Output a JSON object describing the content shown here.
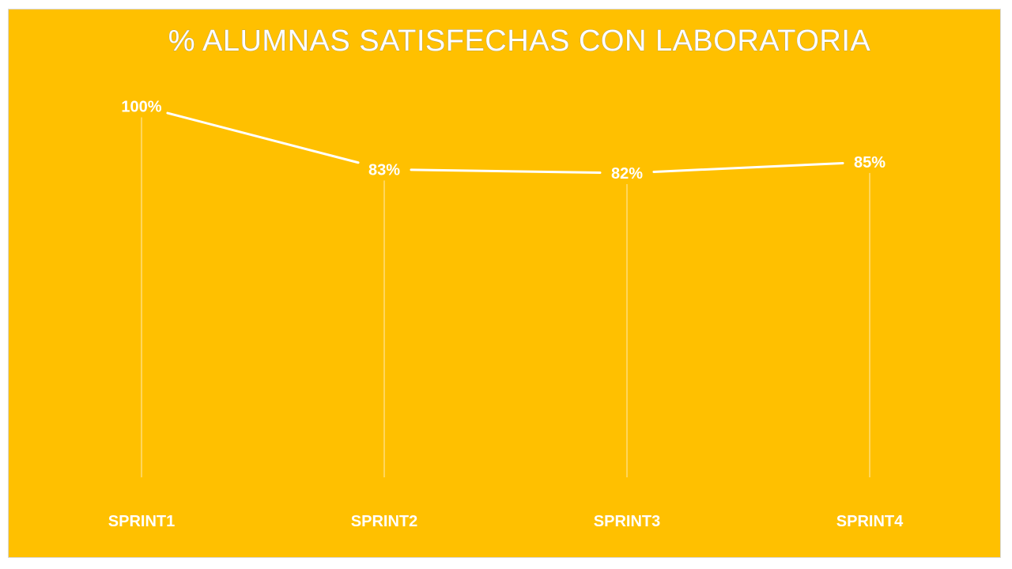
{
  "chart_data": {
    "type": "line",
    "title": "% ALUMNAS SATISFECHAS CON LABORATORIA",
    "categories": [
      "SPRINT1",
      "SPRINT2",
      "SPRINT3",
      "SPRINT4"
    ],
    "values": [
      100,
      83,
      82,
      85
    ],
    "data_labels": [
      "100%",
      "83%",
      "82%",
      "85%"
    ],
    "ylim": [
      0,
      100
    ],
    "grid": false,
    "legend": "none",
    "drop_lines": true,
    "colors": {
      "background": "#FFC000",
      "line": "#ffffff",
      "text": "#ffffff"
    }
  }
}
